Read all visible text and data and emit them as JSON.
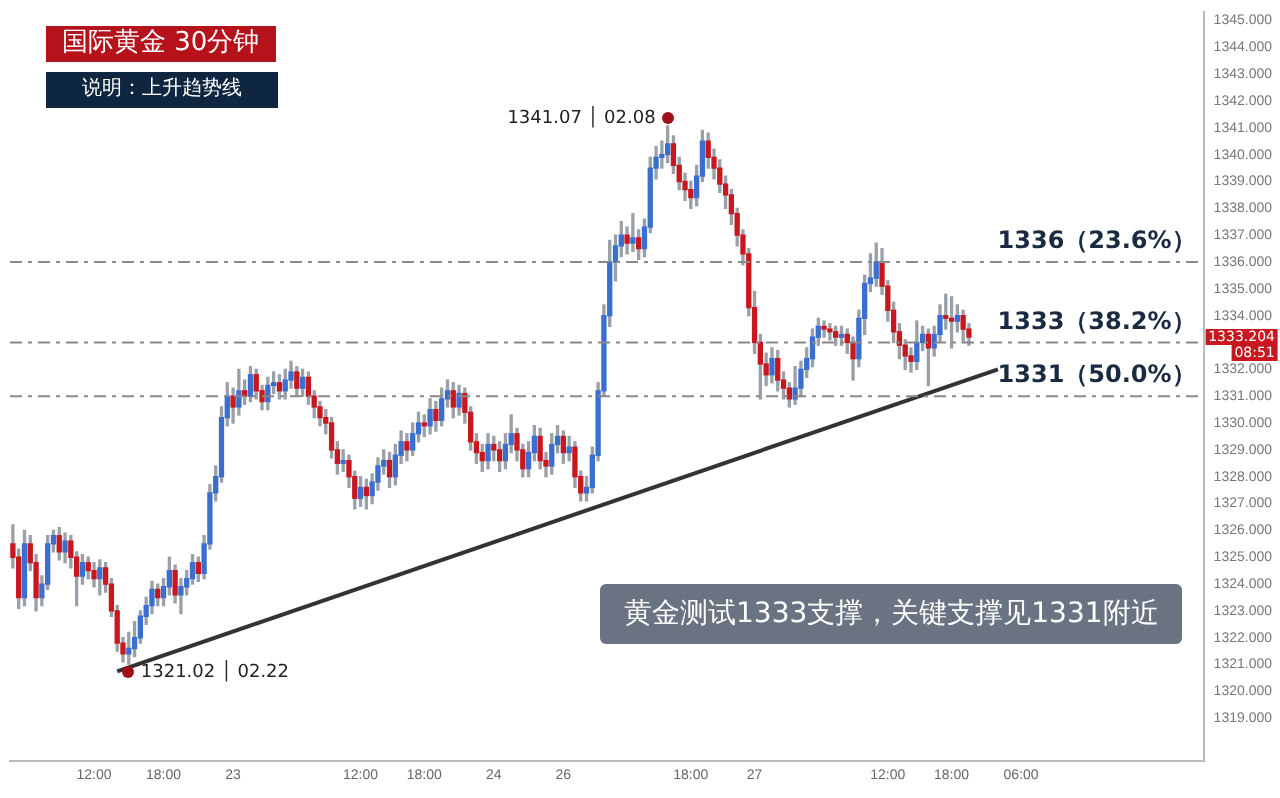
{
  "chart_data": {
    "type": "candlestick",
    "title": "国际黄金  30分钟",
    "subtitle": "说明：上升趋势线",
    "categories": [
      null,
      null,
      null,
      null,
      null,
      null,
      null,
      null,
      null,
      null,
      null,
      null,
      null,
      null,
      "12:00",
      null,
      null,
      null,
      null,
      null,
      null,
      null,
      null,
      null,
      null,
      null,
      "18:00",
      null,
      null,
      null,
      null,
      null,
      null,
      null,
      null,
      null,
      null,
      null,
      "23",
      null,
      null,
      null,
      null,
      null,
      null,
      null,
      null,
      null,
      null,
      null,
      null,
      null,
      null,
      null,
      null,
      null,
      null,
      null,
      null,
      null,
      "12:00",
      null,
      null,
      null,
      null,
      null,
      null,
      null,
      null,
      null,
      null,
      "18:00",
      null,
      null,
      null,
      null,
      null,
      null,
      null,
      null,
      null,
      null,
      null,
      "24",
      null,
      null,
      null,
      null,
      null,
      null,
      null,
      null,
      null,
      null,
      null,
      "26",
      null,
      null,
      null,
      null,
      null,
      null,
      null,
      null,
      null,
      null,
      null,
      null,
      null,
      null,
      null,
      null,
      null,
      null,
      null,
      null,
      null,
      "18:00",
      null,
      null,
      null,
      null,
      null,
      null,
      null,
      null,
      null,
      null,
      "27",
      null,
      null,
      null,
      null,
      null,
      null,
      null,
      null,
      null,
      null,
      null,
      null,
      null,
      null,
      null,
      null,
      null,
      null,
      null,
      null,
      null,
      null,
      "12:00",
      null,
      null,
      null,
      null,
      null,
      null,
      null,
      null,
      null,
      null,
      "18:00",
      null,
      null,
      null,
      null,
      null,
      null,
      null,
      null,
      null,
      null,
      null,
      "06:00",
      null,
      null,
      null,
      null,
      null,
      null,
      null,
      null,
      null,
      null,
      null,
      null,
      null,
      null,
      null,
      null,
      null,
      null,
      null,
      null,
      null,
      null,
      null,
      null,
      null,
      null,
      null,
      null,
      null,
      null,
      null
    ],
    "ohlc": [
      [
        1325.5,
        1326.2,
        1324.6,
        1325.0
      ],
      [
        1325.0,
        1325.3,
        1323.1,
        1323.5
      ],
      [
        1323.5,
        1326.0,
        1323.2,
        1325.5
      ],
      [
        1325.5,
        1325.8,
        1324.5,
        1324.8
      ],
      [
        1324.8,
        1325.1,
        1323.0,
        1323.5
      ],
      [
        1323.5,
        1324.3,
        1323.2,
        1324.0
      ],
      [
        1324.0,
        1325.8,
        1323.8,
        1325.5
      ],
      [
        1325.5,
        1326.0,
        1325.2,
        1325.8
      ],
      [
        1325.8,
        1326.1,
        1324.9,
        1325.2
      ],
      [
        1325.2,
        1325.9,
        1324.8,
        1325.6
      ],
      [
        1325.6,
        1325.8,
        1324.6,
        1325.0
      ],
      [
        1325.0,
        1325.2,
        1323.2,
        1324.3
      ],
      [
        1324.3,
        1325.1,
        1324.0,
        1324.8
      ],
      [
        1324.8,
        1325.0,
        1324.2,
        1324.5
      ],
      [
        1324.5,
        1324.8,
        1323.9,
        1324.2
      ],
      [
        1324.2,
        1324.9,
        1323.6,
        1324.6
      ],
      [
        1324.6,
        1324.8,
        1323.7,
        1324.0
      ],
      [
        1324.0,
        1324.2,
        1322.8,
        1323.0
      ],
      [
        1323.0,
        1323.2,
        1321.5,
        1321.8
      ],
      [
        1321.8,
        1322.0,
        1321.1,
        1321.4
      ],
      [
        1321.4,
        1322.2,
        1321.02,
        1321.6
      ],
      [
        1321.6,
        1322.6,
        1321.3,
        1322.0
      ],
      [
        1322.0,
        1323.0,
        1321.8,
        1322.8
      ],
      [
        1322.8,
        1323.5,
        1322.5,
        1323.2
      ],
      [
        1323.2,
        1324.1,
        1322.9,
        1323.8
      ],
      [
        1323.8,
        1324.0,
        1323.2,
        1323.5
      ],
      [
        1323.5,
        1324.2,
        1323.2,
        1323.9
      ],
      [
        1323.9,
        1325.0,
        1323.6,
        1324.5
      ],
      [
        1324.5,
        1324.7,
        1323.3,
        1323.6
      ],
      [
        1323.6,
        1324.2,
        1322.9,
        1323.9
      ],
      [
        1323.9,
        1324.5,
        1323.6,
        1324.2
      ],
      [
        1324.2,
        1325.1,
        1324.0,
        1324.8
      ],
      [
        1324.8,
        1325.0,
        1324.1,
        1324.4
      ],
      [
        1324.4,
        1325.8,
        1324.2,
        1325.5
      ],
      [
        1325.5,
        1327.7,
        1325.3,
        1327.4
      ],
      [
        1327.4,
        1328.4,
        1327.1,
        1328.0
      ],
      [
        1328.0,
        1330.6,
        1327.8,
        1330.2
      ],
      [
        1330.2,
        1331.5,
        1329.9,
        1331.0
      ],
      [
        1331.0,
        1331.3,
        1330.0,
        1330.6
      ],
      [
        1330.6,
        1332.0,
        1330.3,
        1331.2
      ],
      [
        1331.2,
        1331.6,
        1330.7,
        1331.0
      ],
      [
        1331.0,
        1332.1,
        1330.8,
        1331.8
      ],
      [
        1331.8,
        1332.0,
        1330.9,
        1331.2
      ],
      [
        1331.2,
        1331.4,
        1330.5,
        1330.8
      ],
      [
        1330.8,
        1331.7,
        1330.5,
        1331.4
      ],
      [
        1331.4,
        1331.9,
        1331.1,
        1331.5
      ],
      [
        1331.5,
        1331.8,
        1330.9,
        1331.2
      ],
      [
        1331.2,
        1332.0,
        1330.9,
        1331.6
      ],
      [
        1331.6,
        1332.3,
        1331.3,
        1331.9
      ],
      [
        1331.9,
        1332.1,
        1331.0,
        1331.3
      ],
      [
        1331.3,
        1332.0,
        1331.0,
        1331.7
      ],
      [
        1331.7,
        1331.9,
        1330.7,
        1331.0
      ],
      [
        1331.0,
        1331.2,
        1330.2,
        1330.6
      ],
      [
        1330.6,
        1330.8,
        1329.9,
        1330.2
      ],
      [
        1330.2,
        1330.5,
        1329.6,
        1330.0
      ],
      [
        1330.0,
        1330.2,
        1328.7,
        1329.0
      ],
      [
        1329.0,
        1329.3,
        1328.1,
        1328.5
      ],
      [
        1328.5,
        1329.0,
        1328.2,
        1328.6
      ],
      [
        1328.6,
        1328.8,
        1327.6,
        1328.0
      ],
      [
        1328.0,
        1328.2,
        1326.8,
        1327.2
      ],
      [
        1327.2,
        1328.0,
        1326.9,
        1327.6
      ],
      [
        1327.6,
        1327.9,
        1326.8,
        1327.3
      ],
      [
        1327.3,
        1328.1,
        1327.0,
        1327.8
      ],
      [
        1327.8,
        1328.7,
        1327.5,
        1328.4
      ],
      [
        1328.4,
        1329.0,
        1328.1,
        1328.6
      ],
      [
        1328.6,
        1328.9,
        1327.6,
        1328.0
      ],
      [
        1328.0,
        1329.2,
        1327.7,
        1328.8
      ],
      [
        1328.8,
        1329.7,
        1328.5,
        1329.3
      ],
      [
        1329.3,
        1329.6,
        1328.6,
        1329.0
      ],
      [
        1329.0,
        1330.0,
        1328.8,
        1329.6
      ],
      [
        1329.6,
        1330.4,
        1329.3,
        1330.0
      ],
      [
        1330.0,
        1330.3,
        1329.5,
        1329.9
      ],
      [
        1329.9,
        1330.9,
        1329.6,
        1330.5
      ],
      [
        1330.5,
        1330.8,
        1329.7,
        1330.1
      ],
      [
        1330.1,
        1331.3,
        1329.9,
        1330.9
      ],
      [
        1330.9,
        1331.6,
        1330.6,
        1331.2
      ],
      [
        1331.2,
        1331.5,
        1330.2,
        1330.6
      ],
      [
        1330.6,
        1331.4,
        1330.3,
        1331.1
      ],
      [
        1331.1,
        1331.3,
        1330.0,
        1330.4
      ],
      [
        1330.4,
        1330.6,
        1329.0,
        1329.3
      ],
      [
        1329.3,
        1329.6,
        1328.5,
        1328.9
      ],
      [
        1328.9,
        1329.2,
        1328.2,
        1328.6
      ],
      [
        1328.6,
        1329.6,
        1328.3,
        1329.2
      ],
      [
        1329.2,
        1329.5,
        1328.6,
        1329.0
      ],
      [
        1329.0,
        1329.3,
        1328.2,
        1328.6
      ],
      [
        1328.6,
        1329.6,
        1328.3,
        1329.2
      ],
      [
        1329.2,
        1330.3,
        1328.9,
        1329.6
      ],
      [
        1329.6,
        1329.8,
        1328.6,
        1329.0
      ],
      [
        1329.0,
        1329.2,
        1328.0,
        1328.3
      ],
      [
        1328.3,
        1329.3,
        1328.0,
        1328.9
      ],
      [
        1328.9,
        1329.9,
        1328.6,
        1329.5
      ],
      [
        1329.5,
        1329.8,
        1328.3,
        1328.6
      ],
      [
        1328.6,
        1328.9,
        1328.0,
        1328.4
      ],
      [
        1328.4,
        1329.6,
        1328.1,
        1329.2
      ],
      [
        1329.2,
        1329.9,
        1328.9,
        1329.5
      ],
      [
        1329.5,
        1329.7,
        1328.5,
        1328.9
      ],
      [
        1328.9,
        1329.5,
        1328.6,
        1329.1
      ],
      [
        1329.1,
        1329.3,
        1327.6,
        1328.0
      ],
      [
        1328.0,
        1328.2,
        1327.1,
        1327.4
      ],
      [
        1327.4,
        1328.0,
        1327.1,
        1327.6
      ],
      [
        1327.6,
        1329.1,
        1327.4,
        1328.8
      ],
      [
        1328.8,
        1331.5,
        1328.6,
        1331.2
      ],
      [
        1331.2,
        1334.4,
        1331.0,
        1334.0
      ],
      [
        1334.0,
        1336.8,
        1333.6,
        1336.0
      ],
      [
        1336.0,
        1337.0,
        1335.3,
        1336.6
      ],
      [
        1336.6,
        1337.5,
        1336.2,
        1337.0
      ],
      [
        1337.0,
        1337.3,
        1336.3,
        1336.7
      ],
      [
        1336.7,
        1337.8,
        1336.4,
        1336.9
      ],
      [
        1336.9,
        1337.2,
        1336.1,
        1336.5
      ],
      [
        1336.5,
        1337.6,
        1336.2,
        1337.3
      ],
      [
        1337.3,
        1339.9,
        1337.1,
        1339.5
      ],
      [
        1339.5,
        1340.3,
        1339.1,
        1339.9
      ],
      [
        1339.9,
        1340.5,
        1339.5,
        1340.0
      ],
      [
        1340.0,
        1341.07,
        1339.7,
        1340.4
      ],
      [
        1340.4,
        1340.7,
        1339.3,
        1339.6
      ],
      [
        1339.6,
        1339.9,
        1338.7,
        1339.0
      ],
      [
        1339.0,
        1339.3,
        1338.3,
        1338.7
      ],
      [
        1338.7,
        1339.0,
        1338.0,
        1338.4
      ],
      [
        1338.4,
        1339.6,
        1338.1,
        1339.2
      ],
      [
        1339.2,
        1340.9,
        1339.0,
        1340.5
      ],
      [
        1340.5,
        1340.8,
        1339.5,
        1339.9
      ],
      [
        1339.9,
        1340.2,
        1339.1,
        1339.5
      ],
      [
        1339.5,
        1339.8,
        1338.6,
        1338.9
      ],
      [
        1338.9,
        1339.2,
        1338.0,
        1338.5
      ],
      [
        1338.5,
        1338.7,
        1337.4,
        1337.8
      ],
      [
        1337.8,
        1338.0,
        1336.6,
        1337.0
      ],
      [
        1337.0,
        1337.2,
        1335.9,
        1336.3
      ],
      [
        1336.3,
        1336.5,
        1334.0,
        1334.3
      ],
      [
        1334.3,
        1334.9,
        1332.6,
        1333.0
      ],
      [
        1333.0,
        1333.3,
        1330.9,
        1332.2
      ],
      [
        1332.2,
        1332.6,
        1331.4,
        1331.8
      ],
      [
        1331.8,
        1332.8,
        1331.5,
        1332.4
      ],
      [
        1332.4,
        1332.7,
        1331.2,
        1331.6
      ],
      [
        1331.6,
        1331.9,
        1330.9,
        1331.3
      ],
      [
        1331.3,
        1331.5,
        1330.6,
        1330.9
      ],
      [
        1330.9,
        1332.1,
        1330.7,
        1331.3
      ],
      [
        1331.3,
        1332.3,
        1331.0,
        1332.0
      ],
      [
        1332.0,
        1332.8,
        1331.7,
        1332.4
      ],
      [
        1332.4,
        1333.5,
        1332.1,
        1333.2
      ],
      [
        1333.2,
        1333.9,
        1332.9,
        1333.6
      ],
      [
        1333.6,
        1333.8,
        1333.2,
        1333.5
      ],
      [
        1333.5,
        1333.7,
        1333.1,
        1333.4
      ],
      [
        1333.4,
        1333.6,
        1332.9,
        1333.2
      ],
      [
        1333.2,
        1333.6,
        1332.9,
        1333.3
      ],
      [
        1333.3,
        1333.5,
        1332.6,
        1333.0
      ],
      [
        1333.0,
        1333.2,
        1331.6,
        1332.4
      ],
      [
        1332.4,
        1334.2,
        1332.1,
        1333.9
      ],
      [
        1333.9,
        1335.5,
        1333.3,
        1335.2
      ],
      [
        1335.2,
        1336.3,
        1334.9,
        1335.4
      ],
      [
        1335.4,
        1336.7,
        1335.1,
        1336.0
      ],
      [
        1336.0,
        1336.5,
        1334.8,
        1335.1
      ],
      [
        1335.1,
        1335.3,
        1333.8,
        1334.2
      ],
      [
        1334.2,
        1334.5,
        1333.0,
        1333.4
      ],
      [
        1333.4,
        1333.7,
        1332.4,
        1332.9
      ],
      [
        1332.9,
        1333.1,
        1332.0,
        1332.5
      ],
      [
        1332.5,
        1332.8,
        1331.9,
        1332.3
      ],
      [
        1332.3,
        1333.8,
        1332.0,
        1333.0
      ],
      [
        1333.0,
        1333.6,
        1332.7,
        1333.3
      ],
      [
        1333.3,
        1333.5,
        1331.4,
        1332.8
      ],
      [
        1332.8,
        1333.6,
        1332.5,
        1333.3
      ],
      [
        1333.3,
        1334.4,
        1333.0,
        1334.0
      ],
      [
        1334.0,
        1334.8,
        1333.5,
        1333.9
      ],
      [
        1333.9,
        1334.7,
        1332.8,
        1333.8
      ],
      [
        1333.8,
        1334.4,
        1333.4,
        1334.0
      ],
      [
        1334.0,
        1334.2,
        1333.0,
        1333.5
      ],
      [
        1333.5,
        1333.7,
        1332.9,
        1333.204
      ],
      null,
      null,
      null,
      null,
      null,
      null,
      null,
      null,
      null,
      null,
      null,
      null,
      null,
      null,
      null,
      null,
      null,
      null,
      null,
      null,
      null,
      null,
      null,
      null,
      null,
      null,
      null,
      null,
      null,
      null,
      null,
      null,
      null,
      null,
      null,
      null,
      null,
      null,
      null,
      null
    ],
    "series": [
      {
        "type": "line",
        "color": "#333333",
        "values": [
          null,
          null,
          null,
          null,
          null,
          null,
          null,
          null,
          null,
          null,
          null,
          null,
          null,
          null,
          null,
          null,
          null,
          null,
          1320.75,
          null,
          null,
          null,
          null,
          null,
          null,
          null,
          null,
          null,
          null,
          null,
          null,
          null,
          null,
          null,
          null,
          null,
          null,
          null,
          null,
          null,
          null,
          null,
          null,
          null,
          null,
          null,
          null,
          null,
          null,
          null,
          null,
          null,
          null,
          null,
          null,
          null,
          null,
          null,
          null,
          null,
          null,
          null,
          null,
          null,
          null,
          null,
          null,
          null,
          null,
          null,
          null,
          null,
          null,
          null,
          null,
          null,
          null,
          null,
          null,
          null,
          null,
          null,
          null,
          null,
          null,
          null,
          null,
          null,
          null,
          null,
          null,
          null,
          null,
          null,
          null,
          null,
          null,
          null,
          null,
          null,
          null,
          null,
          null,
          null,
          null,
          null,
          null,
          null,
          null,
          null,
          null,
          null,
          null,
          null,
          null,
          null,
          null,
          null,
          null,
          null,
          null,
          null,
          null,
          null,
          null,
          null,
          null,
          null,
          null,
          null,
          null,
          null,
          null,
          null,
          null,
          null,
          null,
          null,
          null,
          null,
          null,
          null,
          null,
          null,
          null,
          null,
          null,
          null,
          null,
          null,
          null,
          null,
          null,
          null,
          null,
          null,
          null,
          null,
          null,
          null,
          null,
          null,
          null,
          null,
          null,
          null,
          null,
          null,
          null,
          null,
          1332.0,
          null,
          null,
          null,
          null,
          null,
          null,
          null,
          null,
          null,
          null,
          null,
          null,
          null,
          null,
          null,
          null,
          null,
          null,
          null,
          null,
          null,
          null,
          null,
          null,
          null,
          null,
          null,
          null,
          null,
          null,
          null,
          null,
          null,
          null,
          null
        ]
      }
    ],
    "ylim": [
      1317.4,
      1345.3
    ],
    "yticks": [
      {
        "value": 1319,
        "label": "1319.000"
      },
      {
        "value": 1320,
        "label": "1320.000"
      },
      {
        "value": 1321,
        "label": "1321.000"
      },
      {
        "value": 1322,
        "label": "1322.000"
      },
      {
        "value": 1323,
        "label": "1323.000"
      },
      {
        "value": 1324,
        "label": "1324.000"
      },
      {
        "value": 1325,
        "label": "1325.000"
      },
      {
        "value": 1326,
        "label": "1326.000"
      },
      {
        "value": 1327,
        "label": "1327.000"
      },
      {
        "value": 1328,
        "label": "1328.000"
      },
      {
        "value": 1329,
        "label": "1329.000"
      },
      {
        "value": 1330,
        "label": "1330.000"
      },
      {
        "value": 1331,
        "label": "1331.000"
      },
      {
        "value": 1332,
        "label": "1332.000"
      },
      {
        "value": 1334,
        "label": "1334.000"
      },
      {
        "value": 1335,
        "label": "1335.000"
      },
      {
        "value": 1336,
        "label": "1336.000"
      },
      {
        "value": 1337,
        "label": "1337.000"
      },
      {
        "value": 1338,
        "label": "1338.000"
      },
      {
        "value": 1339,
        "label": "1339.000"
      },
      {
        "value": 1340,
        "label": "1340.000"
      },
      {
        "value": 1341,
        "label": "1341.000"
      },
      {
        "value": 1342,
        "label": "1342.000"
      },
      {
        "value": 1343,
        "label": "1343.000"
      },
      {
        "value": 1344,
        "label": "1344.000"
      },
      {
        "value": 1345,
        "label": "1345.000"
      }
    ],
    "ref_lines": [
      {
        "axis": "y",
        "value": 1336,
        "label": "1336（23.6%）",
        "color": "#888888",
        "line_style": "dashed"
      },
      {
        "axis": "y",
        "value": 1333,
        "label": "1333（38.2%）",
        "color": "#888888",
        "line_style": "dashed"
      },
      {
        "axis": "y",
        "value": 1331,
        "label": "1331（50.0%）",
        "color": "#888888",
        "line_style": "dashed"
      }
    ],
    "annotations": [
      "1341.07 │ 02.08",
      "1321.02 │ 02.22",
      "1333.204",
      "08:51",
      "黄金测试1333支撑，关键支撑见1331附近"
    ]
  }
}
